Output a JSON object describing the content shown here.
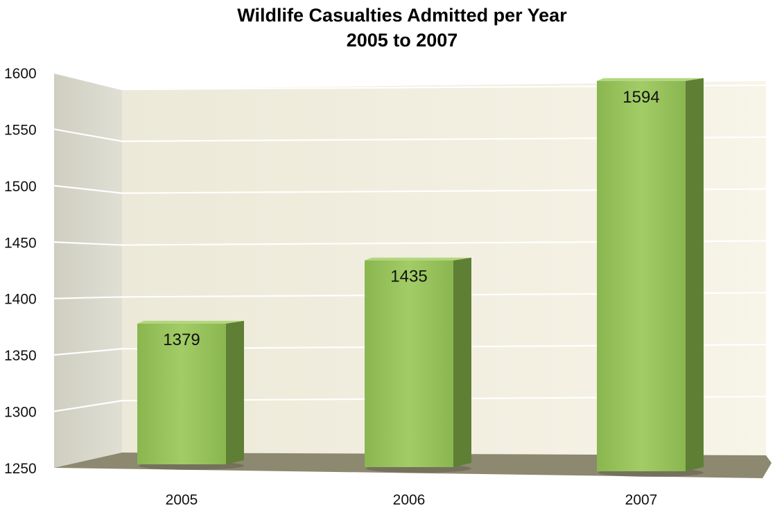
{
  "chart_data": {
    "type": "bar",
    "title": "Wildlife Casualties Admitted per Year",
    "subtitle": "2005 to 2007",
    "xlabel": "",
    "ylabel": "",
    "categories": [
      "2005",
      "2006",
      "2007"
    ],
    "values": [
      1379,
      1435,
      1594
    ],
    "value_labels": [
      "1379",
      "1435",
      "1594"
    ],
    "ylim": [
      1250,
      1600
    ],
    "yticks": [
      1250,
      1300,
      1350,
      1400,
      1450,
      1500,
      1550,
      1600
    ],
    "ytick_labels": [
      "1250",
      "1300",
      "1350",
      "1400",
      "1450",
      "1500",
      "1550",
      "1600"
    ],
    "grid": true,
    "legend": "none",
    "style": "3d",
    "colors": {
      "bar_face": "#92c05a",
      "bar_side": "#5f7f35",
      "bar_top": "#b3d67e",
      "back_wall": "#f2eee0",
      "side_wall": "#d9d8cc",
      "floor": "#8d8870"
    }
  }
}
